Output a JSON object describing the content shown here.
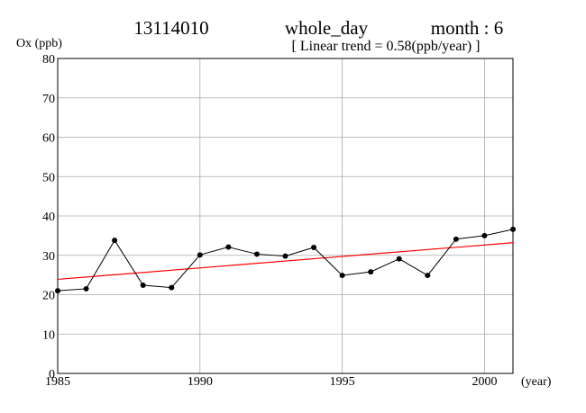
{
  "header": {
    "station": "13114010",
    "period": "whole_day",
    "month": "month : 6",
    "trend": "[ Linear trend = 0.58(ppb/year) ]"
  },
  "chart_data": {
    "type": "line",
    "ylabel": "Ox (ppb)",
    "xlabel": "(year)",
    "xlim": [
      1985,
      2001
    ],
    "ylim": [
      0,
      80
    ],
    "x_ticks": [
      1985,
      1990,
      1995,
      2000
    ],
    "y_ticks": [
      0,
      10,
      20,
      30,
      40,
      50,
      60,
      70,
      80
    ],
    "grid": true,
    "series": [
      {
        "color": "#000000",
        "markers": true,
        "x": [
          1985,
          1986,
          1987,
          1988,
          1989,
          1990,
          1991,
          1992,
          1993,
          1994,
          1995,
          1996,
          1997,
          1998,
          1999,
          2000,
          2001
        ],
        "y": [
          21.0,
          21.5,
          33.8,
          22.4,
          21.8,
          30.1,
          32.1,
          30.3,
          29.8,
          32.0,
          24.9,
          25.8,
          29.1,
          24.9,
          34.1,
          35.0,
          36.6
        ]
      }
    ],
    "trend_line": {
      "color": "#ff0000",
      "x": [
        1985,
        2001
      ],
      "y": [
        23.9,
        33.2
      ]
    }
  }
}
